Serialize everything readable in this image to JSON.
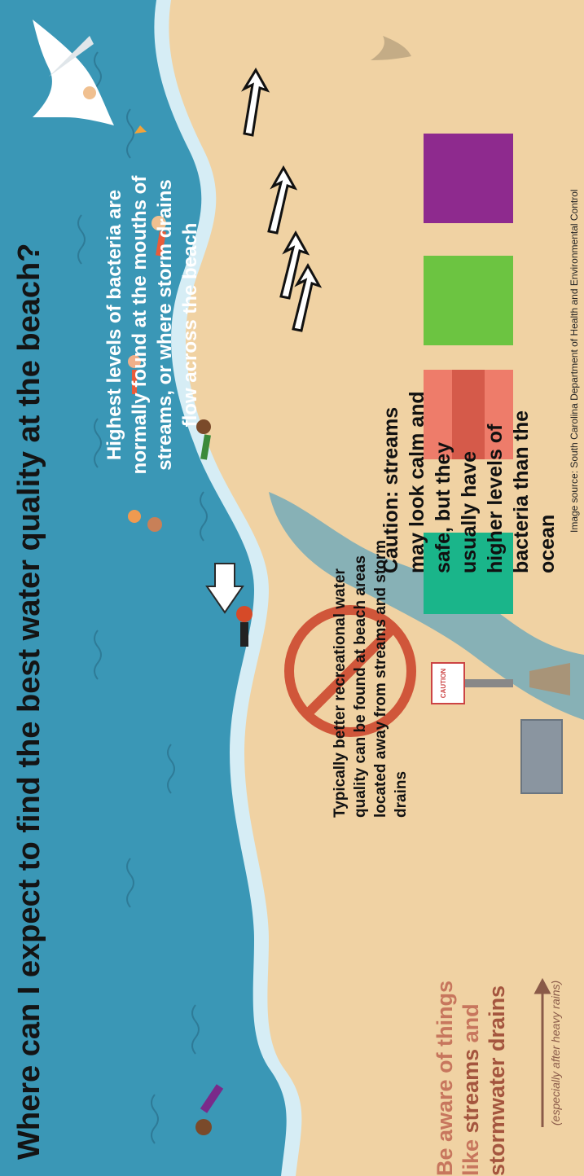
{
  "title": "Where can I expect to find the best water quality at the beach?",
  "bacteria_text": "Highest levels of bacteria are normally found at the mouths of streams, or where storm drains flow across the beach",
  "caution_text": "Caution: streams may look calm and safe, but they usually have higher levels of bacteria than the ocean",
  "typical_text": "Typically better recreational water quality can be found at beach areas located away from streams and storm drains",
  "aware": {
    "line1": "Be aware of things like ",
    "streams": "streams",
    "and": " and ",
    "stormwater": "stormwater drains",
    "note": "(especially after heavy rains)"
  },
  "sign_text": "CAUTION",
  "source": "Image source: South Carolina Department of Health and Environmental Control",
  "colors": {
    "ocean": "#3a97b6",
    "sand": "#f0d2a3",
    "foam": "#d6edf5",
    "no_symbol": "#d0563a",
    "towel_red": "#ee7c6a",
    "towel_green": "#6cc441",
    "towel_purple": "#8e2a8e",
    "towel_teal": "#1ab58a"
  }
}
